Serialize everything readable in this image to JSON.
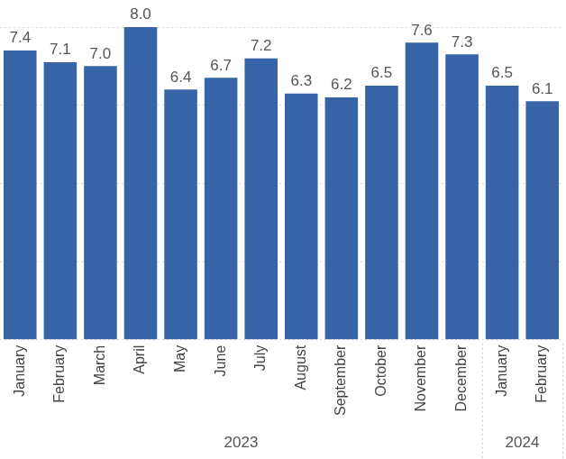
{
  "chart_data": {
    "type": "bar",
    "categories": [
      "January",
      "February",
      "March",
      "April",
      "May",
      "June",
      "July",
      "August",
      "September",
      "October",
      "November",
      "December",
      "January",
      "February"
    ],
    "values": [
      7.4,
      7.1,
      7.0,
      8.0,
      6.4,
      6.7,
      7.2,
      6.3,
      6.2,
      6.5,
      7.6,
      7.3,
      6.5,
      6.1
    ],
    "value_labels": [
      "7.4",
      "7.1",
      "7.0",
      "8.0",
      "6.4",
      "6.7",
      "7.2",
      "6.3",
      "6.2",
      "6.5",
      "7.6",
      "7.3",
      "6.5",
      "6.1"
    ],
    "groups": [
      {
        "name": "2023",
        "size": 12
      },
      {
        "name": "2024",
        "size": 2
      }
    ],
    "color": "#3764a6",
    "ylim": [
      0,
      8
    ],
    "yticks": [
      0,
      2,
      4,
      6,
      8
    ],
    "grid": true,
    "data_labels": true,
    "tick_labels": "x"
  }
}
